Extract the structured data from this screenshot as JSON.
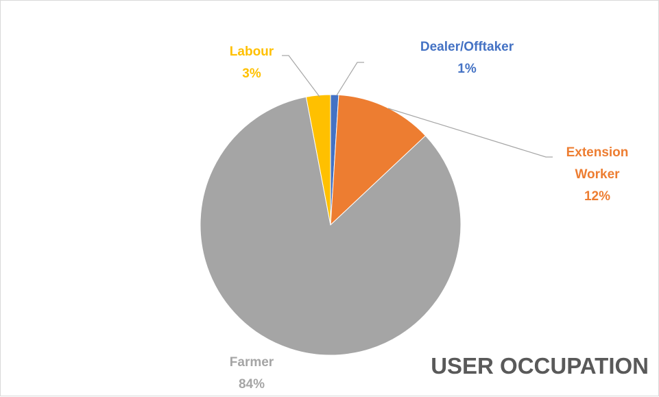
{
  "chart_data": {
    "type": "pie",
    "title": "USER OCCUPATION",
    "categories": [
      "Dealer/Offtaker",
      "Extension Worker",
      "Farmer",
      "Labour"
    ],
    "values": [
      1,
      12,
      84,
      3
    ],
    "value_labels": [
      "1%",
      "12%",
      "84%",
      "3%"
    ],
    "colors": [
      "#4472c4",
      "#ed7d31",
      "#a5a5a5",
      "#ffc000"
    ]
  }
}
